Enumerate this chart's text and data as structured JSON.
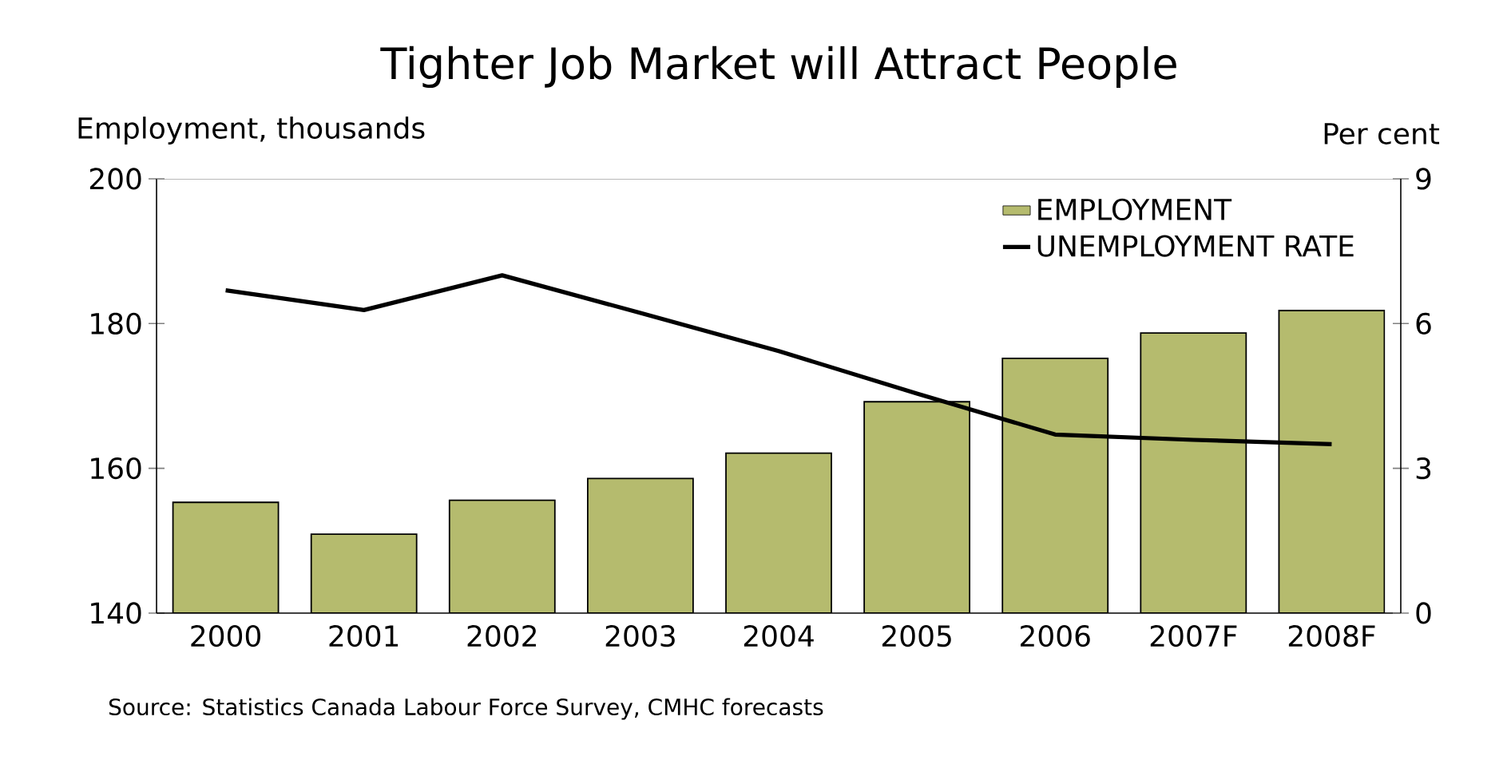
{
  "chart_data": {
    "type": "bar",
    "title": "Tighter Job Market will Attract People",
    "ylabel": "Employment, thousands",
    "y2label": "Per cent",
    "categories": [
      "2000",
      "2001",
      "2002",
      "2003",
      "2004",
      "2005",
      "2006",
      "2007F",
      "2008F"
    ],
    "series": [
      {
        "name": "EMPLOYMENT",
        "color": "#b5bb6e",
        "values": [
          155.3,
          150.9,
          155.6,
          158.6,
          162.1,
          169.2,
          175.2,
          178.7,
          181.8
        ]
      },
      {
        "name": "UNEMPLOYMENT RATE",
        "type": "line",
        "axis": "y2",
        "color": "#000000",
        "values": [
          6.69,
          6.28,
          7.0,
          6.22,
          5.43,
          4.55,
          3.7,
          3.59,
          3.5
        ]
      }
    ],
    "ylim": [
      140,
      200
    ],
    "yticks": [
      140,
      160,
      180,
      200
    ],
    "y2lim": [
      0,
      9
    ],
    "y2ticks": [
      0,
      3,
      6,
      9
    ],
    "legend": "top right",
    "marker": "none",
    "annotations": [
      "Source: Statistics Canada Labour Force Survey, CMHC forecasts"
    ]
  }
}
